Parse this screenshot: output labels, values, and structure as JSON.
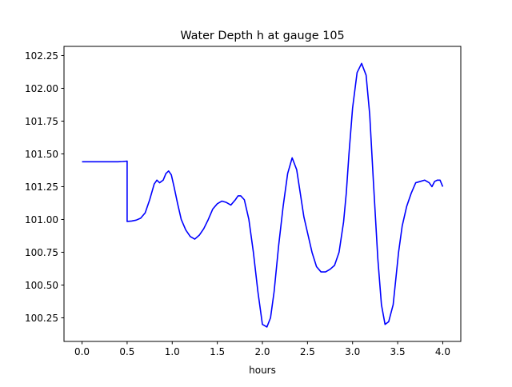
{
  "chart_data": {
    "type": "line",
    "title": "Water Depth h at gauge 105",
    "xlabel": "hours",
    "ylabel": "",
    "xlim": [
      -0.2,
      4.2
    ],
    "ylim": [
      100.07,
      102.32
    ],
    "grid": false,
    "xticks": [
      0.0,
      0.5,
      1.0,
      1.5,
      2.0,
      2.5,
      3.0,
      3.5,
      4.0
    ],
    "xtick_labels": [
      "0.0",
      "0.5",
      "1.0",
      "1.5",
      "2.0",
      "2.5",
      "3.0",
      "3.5",
      "4.0"
    ],
    "yticks": [
      100.25,
      100.5,
      100.75,
      101.0,
      101.25,
      101.5,
      101.75,
      102.0,
      102.25
    ],
    "ytick_labels": [
      "100.25",
      "100.50",
      "100.75",
      "101.00",
      "101.25",
      "101.50",
      "101.75",
      "102.00",
      "102.25"
    ],
    "series": [
      {
        "name": "",
        "color": "#0000ff",
        "x": [
          0.0,
          0.1,
          0.2,
          0.3,
          0.4,
          0.45,
          0.5,
          0.5,
          0.55,
          0.6,
          0.65,
          0.7,
          0.75,
          0.8,
          0.83,
          0.86,
          0.9,
          0.93,
          0.96,
          0.99,
          1.02,
          1.06,
          1.1,
          1.15,
          1.2,
          1.25,
          1.3,
          1.35,
          1.4,
          1.45,
          1.5,
          1.55,
          1.6,
          1.65,
          1.7,
          1.73,
          1.76,
          1.8,
          1.85,
          1.9,
          1.95,
          2.0,
          2.05,
          2.09,
          2.13,
          2.18,
          2.23,
          2.28,
          2.33,
          2.38,
          2.42,
          2.46,
          2.5,
          2.55,
          2.6,
          2.65,
          2.7,
          2.75,
          2.8,
          2.85,
          2.9,
          2.93,
          2.96,
          3.0,
          3.05,
          3.1,
          3.15,
          3.19,
          3.23,
          3.28,
          3.32,
          3.36,
          3.4,
          3.45,
          3.48,
          3.51,
          3.55,
          3.6,
          3.65,
          3.7,
          3.75,
          3.8,
          3.85,
          3.88,
          3.91,
          3.94,
          3.97,
          4.0
        ],
        "y": [
          101.44,
          101.44,
          101.44,
          101.44,
          101.44,
          101.442,
          101.445,
          100.985,
          100.988,
          100.995,
          101.01,
          101.05,
          101.15,
          101.27,
          101.3,
          101.28,
          101.3,
          101.35,
          101.37,
          101.34,
          101.25,
          101.12,
          101.0,
          100.92,
          100.87,
          100.85,
          100.88,
          100.93,
          101.0,
          101.08,
          101.12,
          101.14,
          101.13,
          101.11,
          101.15,
          101.18,
          101.18,
          101.15,
          101.0,
          100.75,
          100.45,
          100.2,
          100.18,
          100.25,
          100.45,
          100.8,
          101.1,
          101.35,
          101.47,
          101.38,
          101.2,
          101.02,
          100.9,
          100.75,
          100.64,
          100.6,
          100.6,
          100.62,
          100.65,
          100.75,
          100.98,
          101.2,
          101.5,
          101.85,
          102.12,
          102.19,
          102.1,
          101.8,
          101.3,
          100.7,
          100.35,
          100.2,
          100.22,
          100.35,
          100.55,
          100.75,
          100.95,
          101.1,
          101.2,
          101.28,
          101.29,
          101.3,
          101.28,
          101.25,
          101.29,
          101.3,
          101.3,
          101.25
        ]
      }
    ]
  }
}
